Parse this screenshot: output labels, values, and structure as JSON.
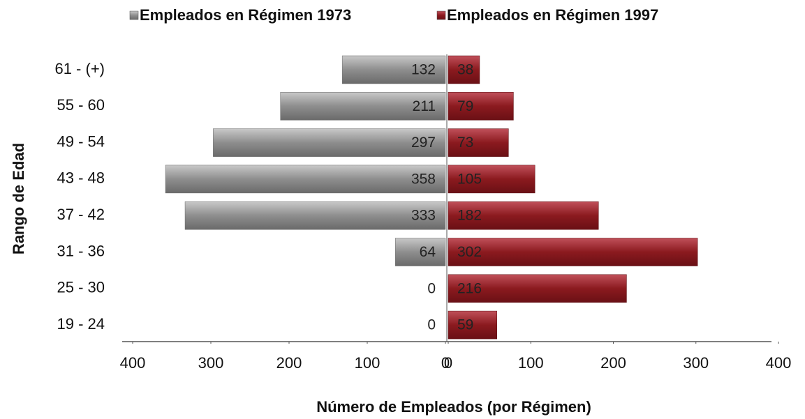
{
  "chart_data": {
    "type": "pyramid",
    "xlabel": "Número de Empleados (por Régimen)",
    "ylabel": "Rango de Edad",
    "categories": [
      "61 - (+)",
      "55 - 60",
      "49 - 54",
      "43 - 48",
      "37 - 42",
      "31 - 36",
      "25 - 30",
      "19 - 24"
    ],
    "series": [
      {
        "name": "Empleados en Régimen 1973",
        "color": "#8e8e8e",
        "side": "left",
        "values": [
          132,
          211,
          297,
          358,
          333,
          64,
          0,
          0
        ]
      },
      {
        "name": "Empleados en Régimen 1997",
        "color": "#8b1a1f",
        "side": "right",
        "values": [
          38,
          79,
          73,
          105,
          182,
          302,
          216,
          59
        ]
      }
    ],
    "xlim_left": [
      0,
      400
    ],
    "xticks_left": [
      400,
      300,
      200,
      100,
      0
    ],
    "xlim": [
      0,
      400
    ],
    "xticks": [
      0,
      100,
      200,
      300,
      400
    ],
    "legend": "top"
  }
}
